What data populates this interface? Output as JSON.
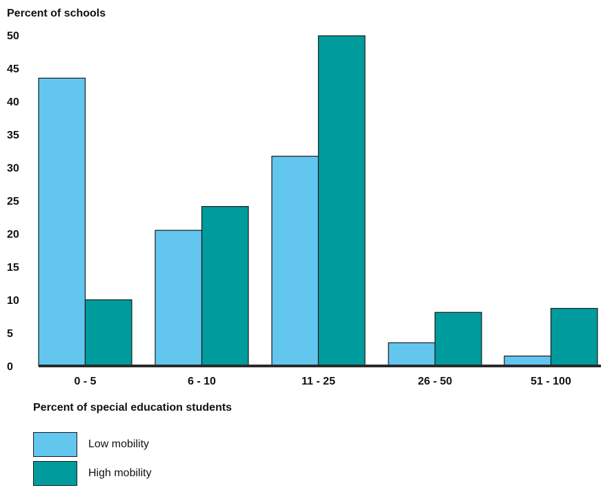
{
  "chart_data": {
    "type": "bar",
    "ylabel": "Percent of schools",
    "xlabel": "Percent of special education students",
    "categories": [
      "0 - 5",
      "6 - 10",
      "11 - 25",
      "26 - 50",
      "51 - 100"
    ],
    "ylim": [
      0,
      50
    ],
    "yticks": [
      0,
      5,
      10,
      15,
      20,
      25,
      30,
      35,
      40,
      45,
      50
    ],
    "grid": false,
    "legend_position": "bottom-left",
    "series": [
      {
        "name": "Low mobility",
        "color": "#62C6EF",
        "values": [
          43.5,
          20.5,
          31.7,
          3.5,
          1.5
        ]
      },
      {
        "name": "High mobility",
        "color": "#009B9C",
        "values": [
          10.0,
          24.1,
          49.9,
          8.1,
          8.7
        ]
      }
    ]
  }
}
